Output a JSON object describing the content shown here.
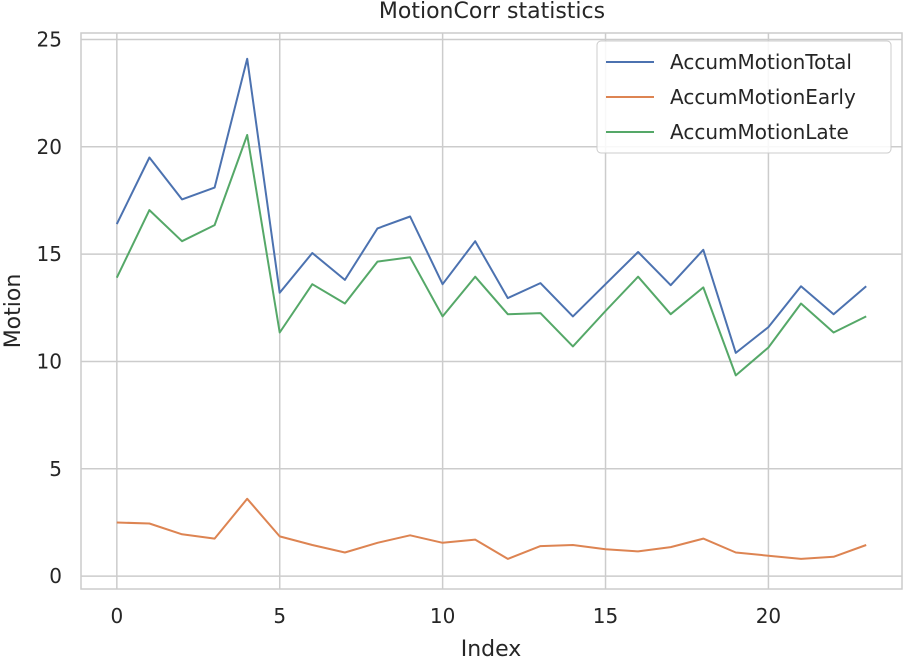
{
  "chart_data": {
    "type": "line",
    "title": "MotionCorr statistics",
    "xlabel": "Index",
    "ylabel": "Motion",
    "xlim": [
      -1.1,
      24.1
    ],
    "ylim": [
      -0.6,
      25.3
    ],
    "xticks": [
      0,
      5,
      10,
      15,
      20
    ],
    "yticks": [
      0,
      5,
      10,
      15,
      20,
      25
    ],
    "grid": true,
    "legend_position": "top-right",
    "x": [
      0,
      1,
      2,
      3,
      4,
      5,
      6,
      7,
      8,
      9,
      10,
      11,
      12,
      13,
      14,
      15,
      16,
      17,
      18,
      19,
      20,
      21,
      22,
      23
    ],
    "series": [
      {
        "name": "AccumMotionTotal",
        "color": "#4c72b0",
        "values": [
          16.4,
          19.5,
          17.55,
          18.1,
          24.1,
          13.2,
          15.05,
          13.8,
          16.2,
          16.75,
          13.6,
          15.6,
          12.95,
          13.65,
          12.1,
          13.6,
          15.1,
          13.55,
          15.2,
          10.4,
          11.6,
          13.5,
          12.2,
          13.5
        ]
      },
      {
        "name": "AccumMotionEarly",
        "color": "#dd8452",
        "values": [
          2.5,
          2.45,
          1.95,
          1.75,
          3.6,
          1.85,
          1.45,
          1.1,
          1.55,
          1.9,
          1.55,
          1.7,
          0.8,
          1.4,
          1.45,
          1.25,
          1.15,
          1.35,
          1.75,
          1.1,
          0.95,
          0.8,
          0.9,
          1.45
        ]
      },
      {
        "name": "AccumMotionLate",
        "color": "#55a868",
        "values": [
          13.9,
          17.05,
          15.6,
          16.35,
          20.55,
          11.35,
          13.6,
          12.7,
          14.65,
          14.85,
          12.1,
          13.95,
          12.2,
          12.25,
          10.7,
          12.35,
          13.95,
          12.2,
          13.45,
          9.35,
          10.65,
          12.7,
          11.35,
          12.1
        ]
      }
    ]
  }
}
